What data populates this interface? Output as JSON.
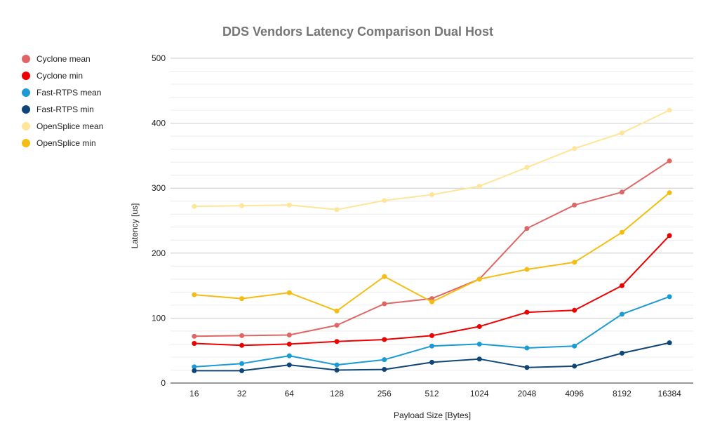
{
  "chart_data": {
    "type": "line",
    "title": "DDS Vendors Latency Comparison Dual Host",
    "xlabel": "Payload Size [Bytes]",
    "ylabel": "Latency [us]",
    "ylim": [
      0,
      500
    ],
    "y_ticks": [
      "0",
      "100",
      "200",
      "300",
      "400",
      "500"
    ],
    "y_tick_values": [
      0,
      100,
      200,
      300,
      400,
      500
    ],
    "categories": [
      "16",
      "32",
      "64",
      "128",
      "256",
      "512",
      "1024",
      "2048",
      "4096",
      "8192",
      "16384"
    ],
    "grid": true,
    "minor_grid": true,
    "legend_position": "left",
    "series": [
      {
        "name": "Cyclone mean",
        "color": "#e06666",
        "values": [
          72,
          73,
          74,
          89,
          122,
          130,
          160,
          238,
          274,
          294,
          342
        ]
      },
      {
        "name": "Cyclone min",
        "color": "#ee0000",
        "values": [
          61,
          58,
          60,
          64,
          67,
          73,
          87,
          109,
          112,
          150,
          227
        ]
      },
      {
        "name": "Fast-RTPS mean",
        "color": "#1b9ad4",
        "values": [
          25,
          30,
          42,
          28,
          36,
          57,
          60,
          54,
          57,
          106,
          133
        ]
      },
      {
        "name": "Fast-RTPS min",
        "color": "#0e4677",
        "values": [
          19,
          19,
          28,
          20,
          21,
          32,
          37,
          24,
          26,
          46,
          62
        ]
      },
      {
        "name": "OpenSplice mean",
        "color": "#ffe599",
        "values": [
          272,
          273,
          274,
          267,
          281,
          290,
          303,
          332,
          361,
          385,
          420
        ]
      },
      {
        "name": "OpenSplice min",
        "color": "#f4bd13",
        "values": [
          136,
          130,
          139,
          111,
          164,
          125,
          160,
          175,
          186,
          232,
          293
        ]
      }
    ]
  }
}
